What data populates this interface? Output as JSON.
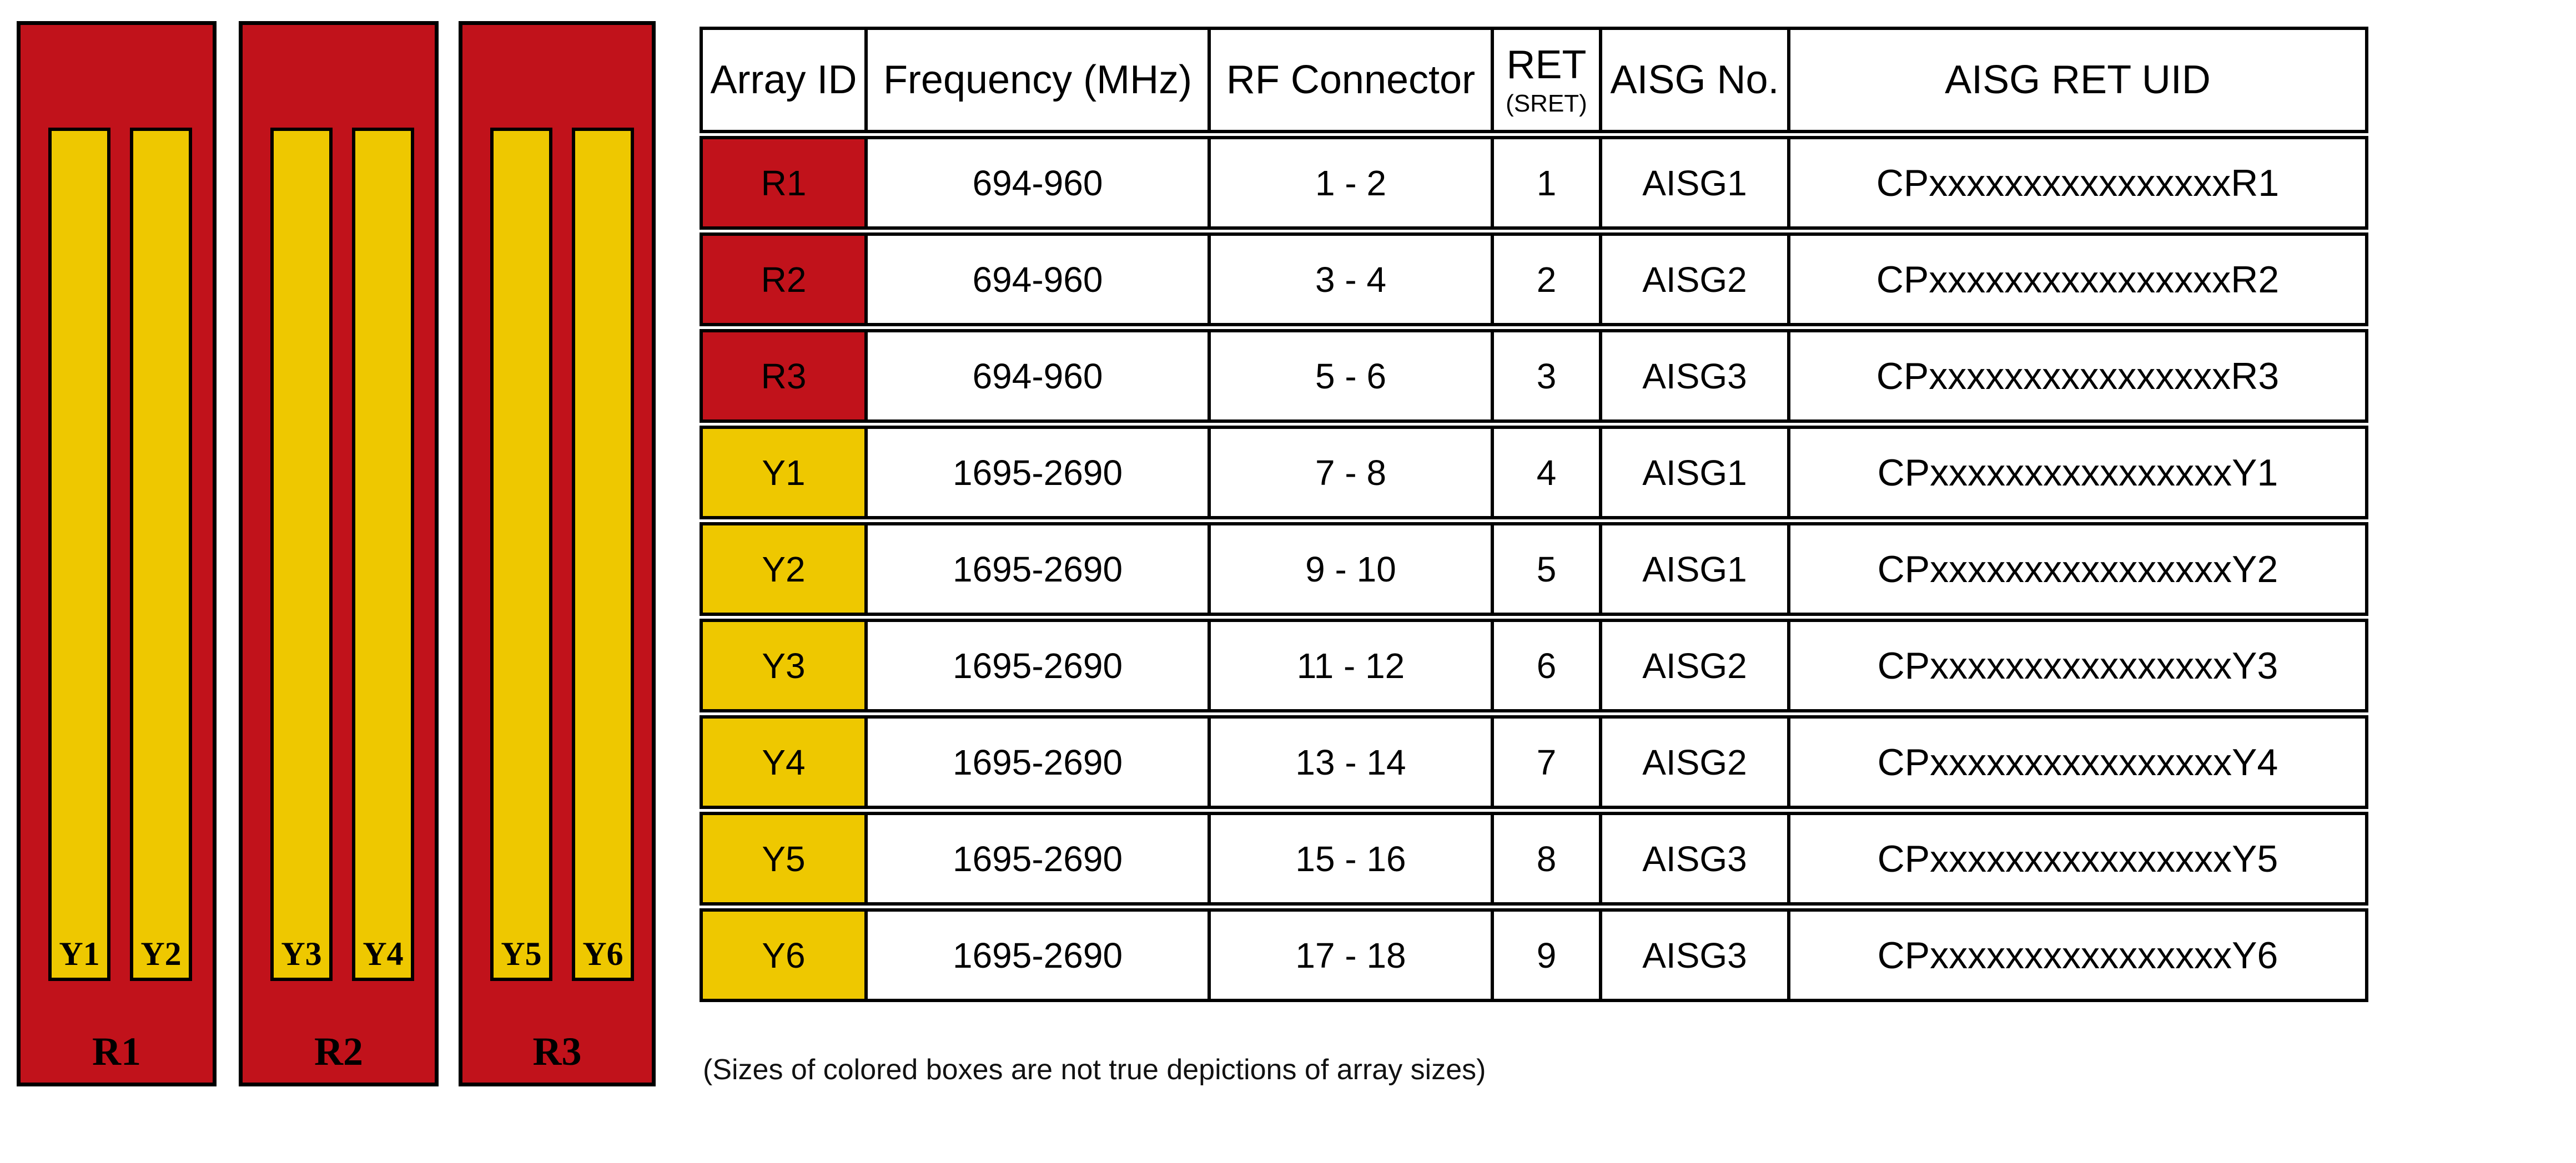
{
  "colors": {
    "red": "#C1121B",
    "yellow": "#EEC800",
    "border": "#000000",
    "background": "#FFFFFF"
  },
  "diagram": {
    "panels": [
      {
        "label": "R1",
        "bars": [
          {
            "label": "Y1"
          },
          {
            "label": "Y2"
          }
        ]
      },
      {
        "label": "R2",
        "bars": [
          {
            "label": "Y3"
          },
          {
            "label": "Y4"
          }
        ]
      },
      {
        "label": "R3",
        "bars": [
          {
            "label": "Y5"
          },
          {
            "label": "Y6"
          }
        ]
      }
    ]
  },
  "table": {
    "header": {
      "array_id": "Array ID",
      "frequency": "Frequency (MHz)",
      "rf_connector": "RF Connector",
      "ret": "RET",
      "ret_sub": "(SRET)",
      "aisg_no": "AISG No.",
      "aisg_ret_uid": "AISG RET UID"
    },
    "rows": [
      {
        "array_id": "R1",
        "color": "red",
        "frequency": "694-960",
        "rf_connector": "1 - 2",
        "ret": "1",
        "aisg_no": "AISG1",
        "aisg_ret_uid": "CPxxxxxxxxxxxxxxxxR1"
      },
      {
        "array_id": "R2",
        "color": "red",
        "frequency": "694-960",
        "rf_connector": "3 - 4",
        "ret": "2",
        "aisg_no": "AISG2",
        "aisg_ret_uid": "CPxxxxxxxxxxxxxxxxR2"
      },
      {
        "array_id": "R3",
        "color": "red",
        "frequency": "694-960",
        "rf_connector": "5 - 6",
        "ret": "3",
        "aisg_no": "AISG3",
        "aisg_ret_uid": "CPxxxxxxxxxxxxxxxxR3"
      },
      {
        "array_id": "Y1",
        "color": "yellow",
        "frequency": "1695-2690",
        "rf_connector": "7 - 8",
        "ret": "4",
        "aisg_no": "AISG1",
        "aisg_ret_uid": "CPxxxxxxxxxxxxxxxxY1"
      },
      {
        "array_id": "Y2",
        "color": "yellow",
        "frequency": "1695-2690",
        "rf_connector": "9 - 10",
        "ret": "5",
        "aisg_no": "AISG1",
        "aisg_ret_uid": "CPxxxxxxxxxxxxxxxxY2"
      },
      {
        "array_id": "Y3",
        "color": "yellow",
        "frequency": "1695-2690",
        "rf_connector": "11 - 12",
        "ret": "6",
        "aisg_no": "AISG2",
        "aisg_ret_uid": "CPxxxxxxxxxxxxxxxxY3"
      },
      {
        "array_id": "Y4",
        "color": "yellow",
        "frequency": "1695-2690",
        "rf_connector": "13 - 14",
        "ret": "7",
        "aisg_no": "AISG2",
        "aisg_ret_uid": "CPxxxxxxxxxxxxxxxxY4"
      },
      {
        "array_id": "Y5",
        "color": "yellow",
        "frequency": "1695-2690",
        "rf_connector": "15 - 16",
        "ret": "8",
        "aisg_no": "AISG3",
        "aisg_ret_uid": "CPxxxxxxxxxxxxxxxxY5"
      },
      {
        "array_id": "Y6",
        "color": "yellow",
        "frequency": "1695-2690",
        "rf_connector": "17 - 18",
        "ret": "9",
        "aisg_no": "AISG3",
        "aisg_ret_uid": "CPxxxxxxxxxxxxxxxxY6"
      }
    ]
  },
  "footnote": "(Sizes of colored boxes are not true depictions of array sizes)"
}
